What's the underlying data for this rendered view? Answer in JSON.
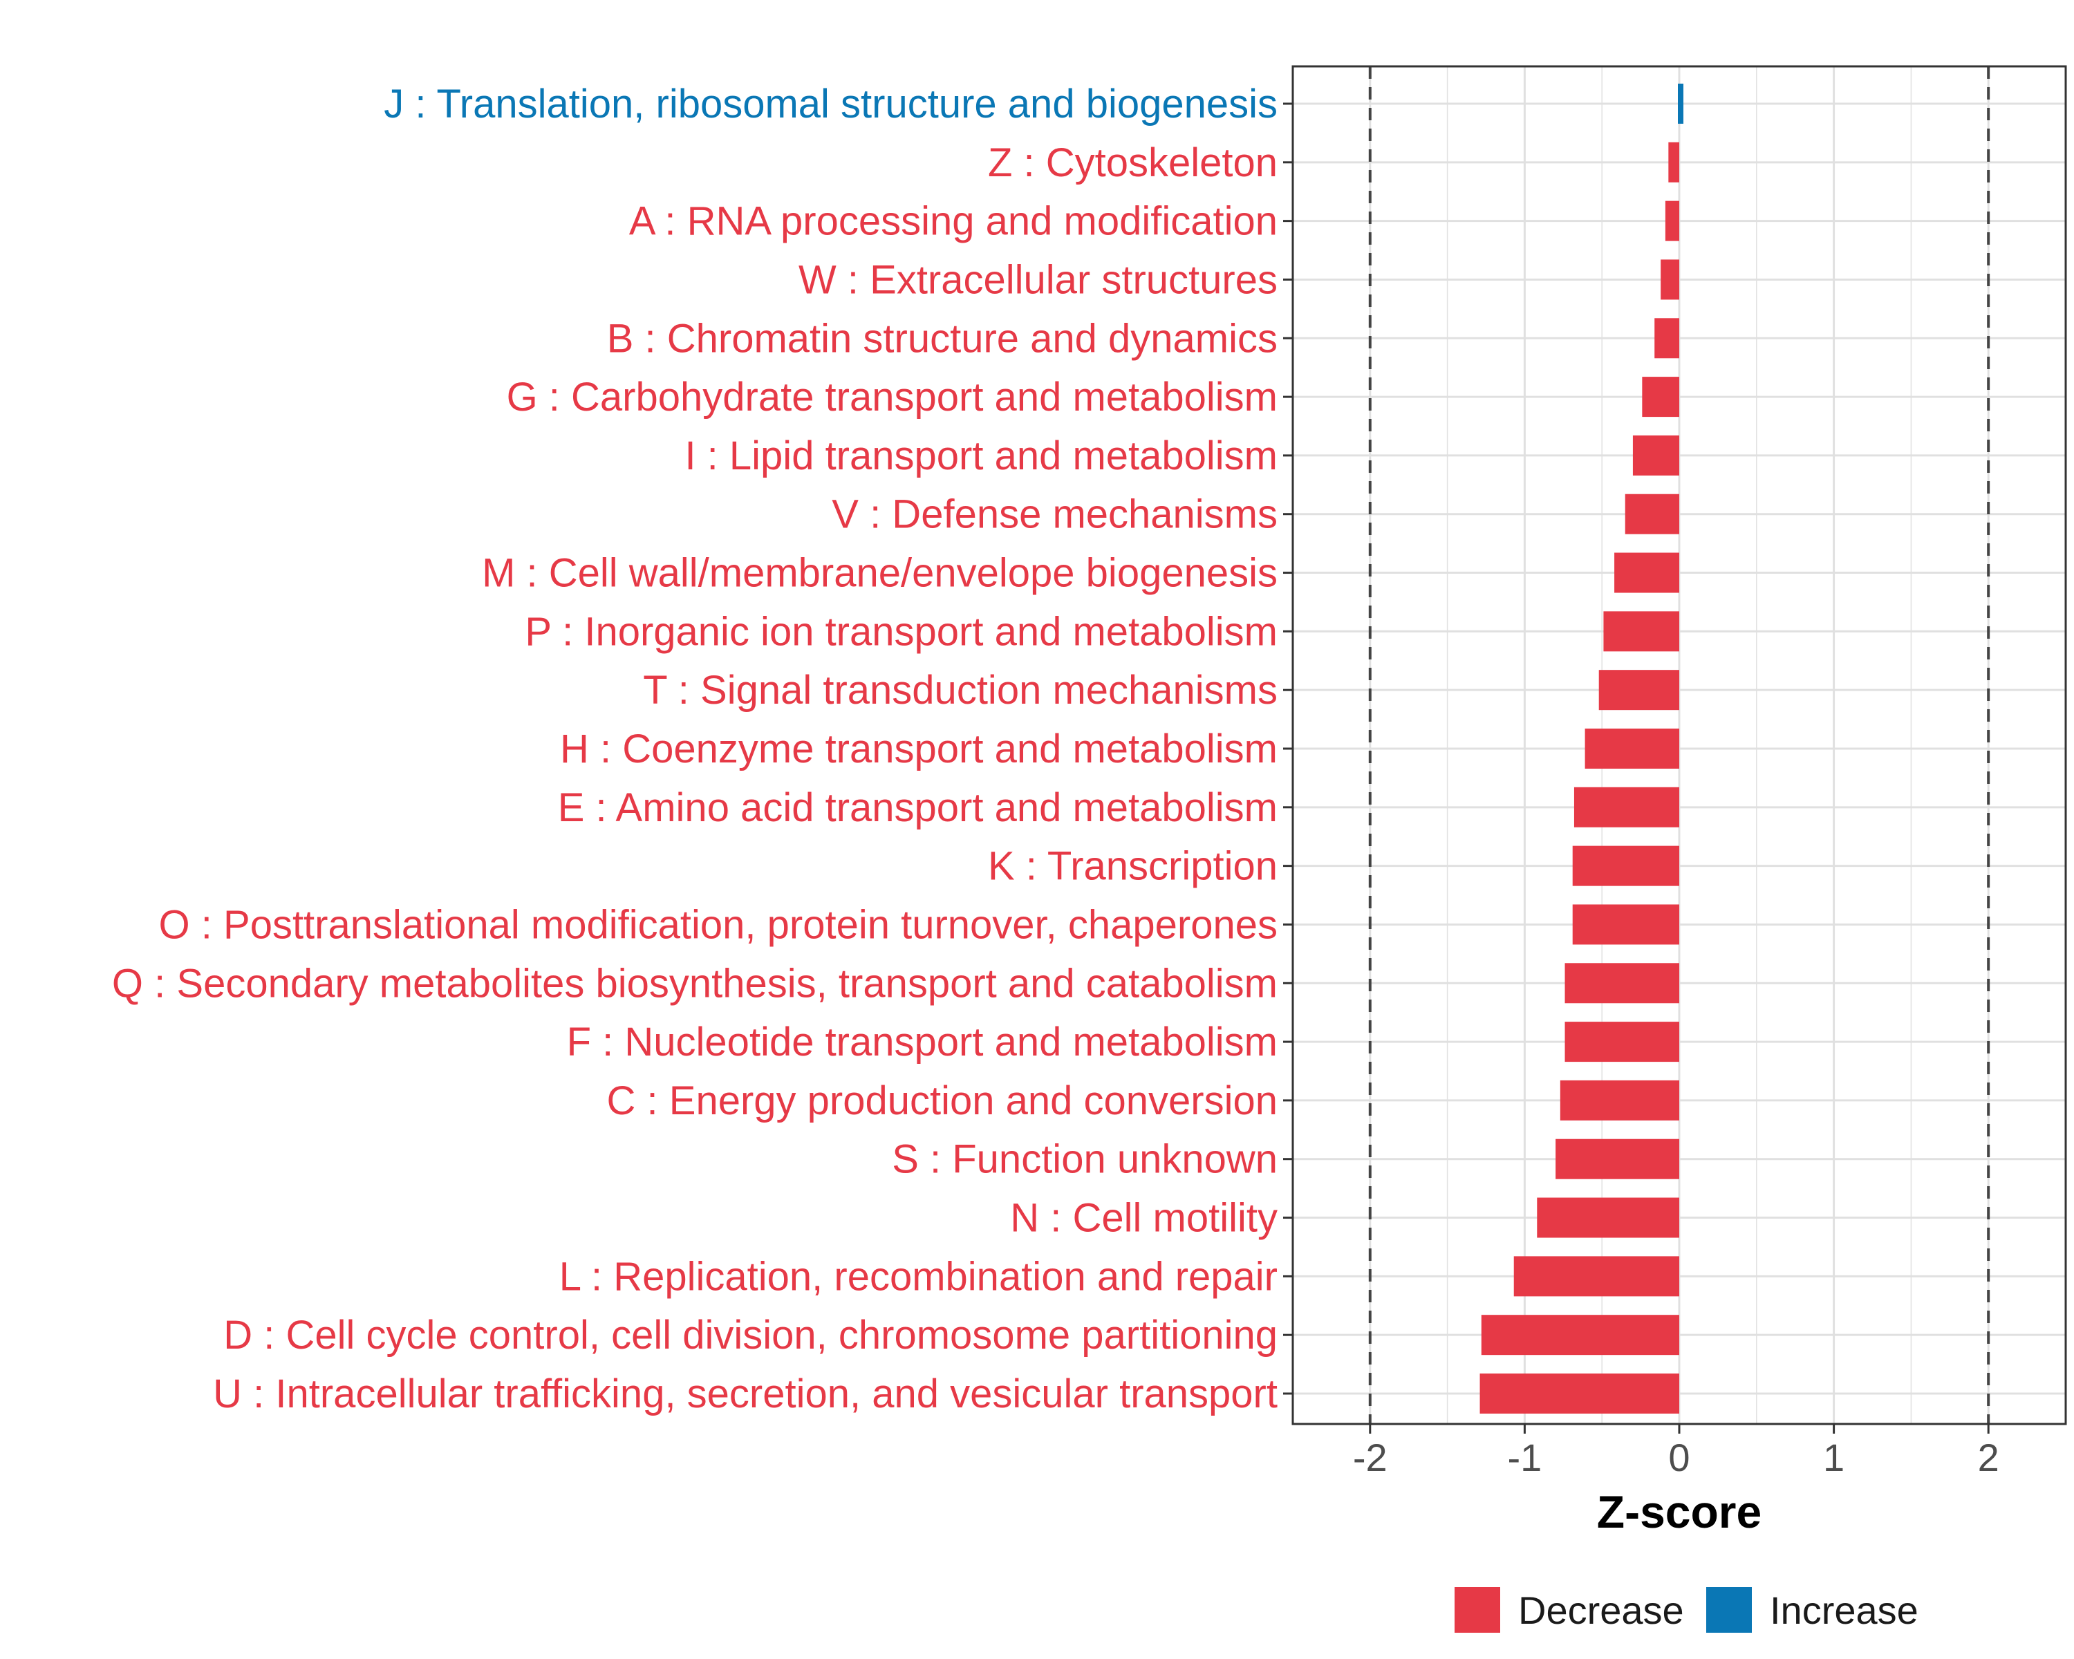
{
  "chart_data": {
    "type": "bar",
    "orientation": "horizontal",
    "categories": [
      "J : Translation, ribosomal structure and biogenesis",
      "Z : Cytoskeleton",
      "A : RNA processing and modification",
      "W : Extracellular structures",
      "B : Chromatin structure and dynamics",
      "G : Carbohydrate transport and metabolism",
      "I : Lipid transport and metabolism",
      "V : Defense mechanisms",
      "M : Cell wall/membrane/envelope biogenesis",
      "P : Inorganic ion transport and metabolism",
      "T : Signal transduction mechanisms",
      "H : Coenzyme transport and metabolism",
      "E : Amino acid transport and metabolism",
      "K : Transcription",
      "O : Posttranslational modification, protein turnover, chaperones",
      "Q : Secondary metabolites biosynthesis, transport and catabolism",
      "F : Nucleotide transport and metabolism",
      "C : Energy production and conversion",
      "S : Function unknown",
      "N : Cell motility",
      "L : Replication, recombination and repair",
      "D : Cell cycle control, cell division, chromosome partitioning",
      "U : Intracellular trafficking, secretion, and vesicular transport"
    ],
    "values": [
      0.03,
      -0.07,
      -0.09,
      -0.12,
      -0.16,
      -0.24,
      -0.3,
      -0.35,
      -0.42,
      -0.49,
      -0.52,
      -0.61,
      -0.68,
      -0.69,
      -0.69,
      -0.74,
      -0.74,
      -0.77,
      -0.8,
      -0.92,
      -1.07,
      -1.28,
      -1.29
    ],
    "direction": [
      "Increase",
      "Decrease",
      "Decrease",
      "Decrease",
      "Decrease",
      "Decrease",
      "Decrease",
      "Decrease",
      "Decrease",
      "Decrease",
      "Decrease",
      "Decrease",
      "Decrease",
      "Decrease",
      "Decrease",
      "Decrease",
      "Decrease",
      "Decrease",
      "Decrease",
      "Decrease",
      "Decrease",
      "Decrease",
      "Decrease"
    ],
    "xlabel": "Z-score",
    "ylabel": "",
    "xlim": [
      -2.5,
      2.5
    ],
    "xticks": [
      -2,
      -1,
      0,
      1,
      2
    ],
    "xtick_labels": [
      "-2",
      "-1",
      "0",
      "1",
      "2"
    ],
    "reference_lines": [
      -2,
      2
    ],
    "grid": true,
    "legend": {
      "placement": "bottom",
      "entries": [
        {
          "label": "Decrease",
          "color": "#e63946"
        },
        {
          "label": "Increase",
          "color": "#0a77b5"
        }
      ]
    },
    "colors": {
      "Decrease": "#e63946",
      "Increase": "#0a77b5"
    }
  }
}
